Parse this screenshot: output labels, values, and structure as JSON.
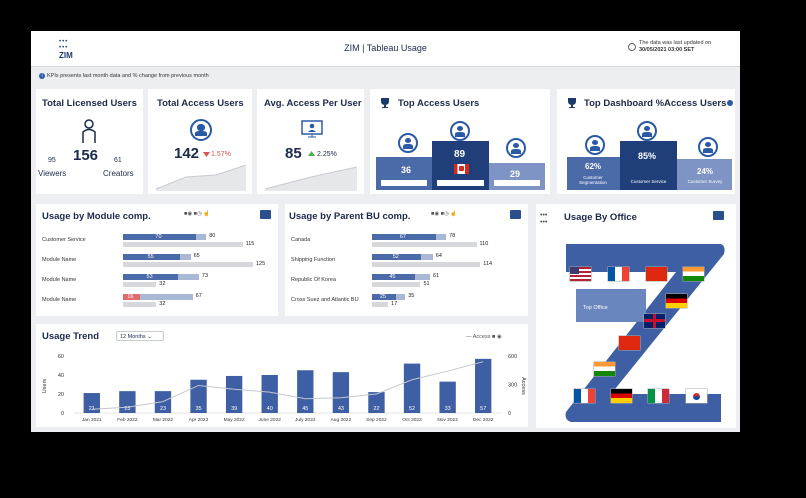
{
  "header": {
    "logo": "ZIM",
    "title": "ZIM  |  Tableau Usage",
    "updated_line1": "The data was last updated on",
    "updated_line2": "30/05/2021 03:00 SET"
  },
  "info_note": "KPIs presents last month data and % change from previous month",
  "kpi": {
    "licensed": {
      "title": "Total Licensed Users",
      "total": "156",
      "viewers_count": "95",
      "viewers_label": "Viewers",
      "creators_count": "61",
      "creators_label": "Creators"
    },
    "access": {
      "title": "Total Access Users",
      "value": "142",
      "change": "1.57%",
      "direction": "down"
    },
    "avg": {
      "title": "Avg. Access Per User",
      "value": "85",
      "change": "2.25%",
      "direction": "up"
    }
  },
  "top_access": {
    "title": "Top Access Users",
    "podium": [
      {
        "value": "36"
      },
      {
        "value": "89"
      },
      {
        "value": "29"
      }
    ]
  },
  "top_dashboard": {
    "title": "Top Dashboard %Access Users",
    "podium": [
      {
        "value": "62%",
        "label": "Customer Segmentation"
      },
      {
        "value": "85%",
        "label": "Customer Service"
      },
      {
        "value": "24%",
        "label": "Customer Survey"
      }
    ]
  },
  "module": {
    "title": "Usage by Module comp.",
    "rows": [
      {
        "label": "Customer Service",
        "v1": 70,
        "v2": 80,
        "v3": 115,
        "highlight": false
      },
      {
        "label": "Module Name",
        "v1": 55,
        "v2": 65,
        "v3": 125,
        "highlight": false
      },
      {
        "label": "Module Name",
        "v1": 53,
        "v2": 73,
        "v3": 32,
        "highlight": false
      },
      {
        "label": "Module Name",
        "v1": 16,
        "v2": 67,
        "v3": 32,
        "highlight": true
      }
    ]
  },
  "parent_bu": {
    "title": "Usage by Parent BU comp.",
    "rows": [
      {
        "label": "Canada",
        "v1": 67,
        "v2": 78,
        "v3": 110,
        "highlight": false
      },
      {
        "label": "Shipping Function",
        "v1": 52,
        "v2": 64,
        "v3": 114,
        "highlight": false
      },
      {
        "label": "Republic Of Korea",
        "v1": 45,
        "v2": 61,
        "v3": 51,
        "highlight": false
      },
      {
        "label": "Cross Suez and Atlantic BU",
        "v1": 25,
        "v2": 35,
        "v3": 17,
        "highlight": false
      }
    ]
  },
  "trend": {
    "title": "Usage Trend",
    "period": "12 Months",
    "legend_access": "Access",
    "y_left_label": "Users",
    "y_right_label": "Access",
    "y_left_ticks": [
      "60",
      "40",
      "20",
      "0"
    ],
    "y_right_ticks": [
      "600",
      "300",
      "0"
    ]
  },
  "chart_data": {
    "type": "bar",
    "categories": [
      "Jan 2021",
      "Feb 2022",
      "Mar 2022",
      "Apr 2022",
      "May 2022",
      "June 2022",
      "July 2022",
      "Aug 2022",
      "Sep 2022",
      "Oct 2022",
      "Nov 2022",
      "Dec 2022"
    ],
    "series": [
      {
        "name": "Users",
        "values": [
          21,
          23,
          23,
          35,
          39,
          40,
          45,
          43,
          22,
          52,
          33,
          57
        ]
      },
      {
        "name": "Access",
        "values": [
          40,
          60,
          120,
          290,
          250,
          220,
          150,
          160,
          200,
          350,
          440,
          540
        ]
      }
    ],
    "ylim_left": [
      0,
      60
    ],
    "ylim_right": [
      0,
      600
    ]
  },
  "office": {
    "title": "Usage By Office",
    "top_office_label": "Top Office"
  },
  "colors": {
    "navy": "#2a4f8f",
    "mid": "#5a78b3",
    "light": "#a9b8d4",
    "grey": "#d6d8dc",
    "red": "#e06b6b"
  }
}
